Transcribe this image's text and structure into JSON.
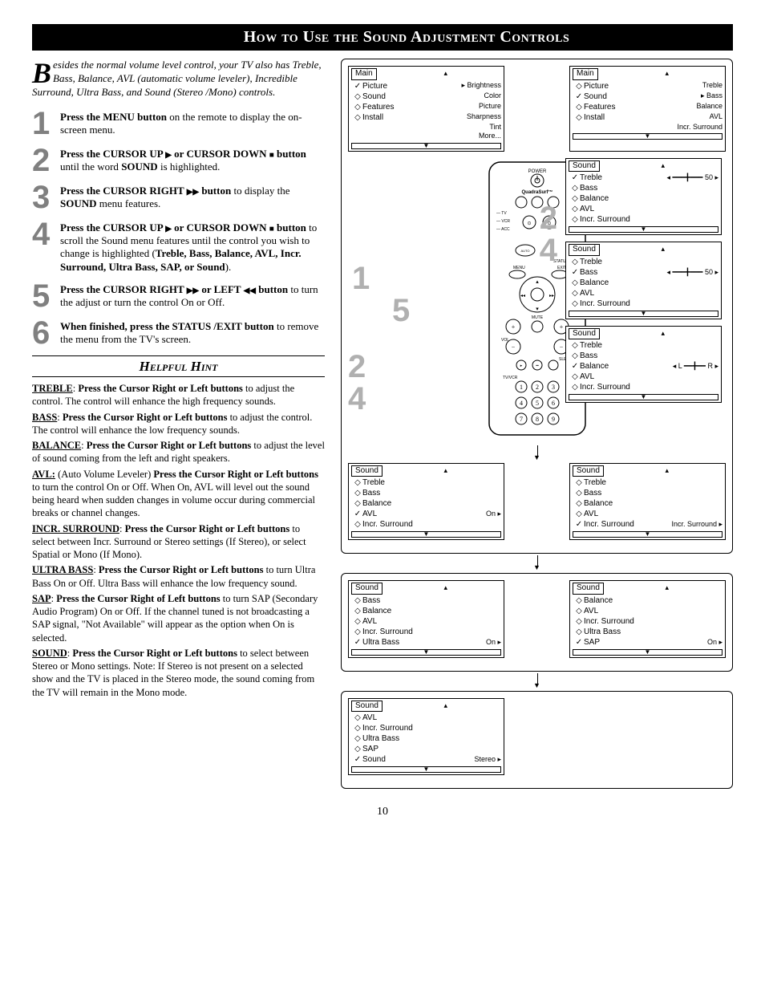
{
  "title": "How to Use the Sound Adjustment Controls",
  "intro_first_letter": "B",
  "intro": "esides the normal volume level control, your TV also has Treble, Bass, Balance, AVL (automatic volume leveler), Incredible Surround, Ultra Bass, and Sound (Stereo /Mono) controls.",
  "steps": {
    "s1": {
      "num": "1",
      "html": "<b>Press the MENU button</b> on the remote to display the on-screen menu."
    },
    "s2": {
      "num": "2",
      "html": "<b>Press the CURSOR UP <span class='tri'>▶</span> or CURSOR DOWN <span class='sq'>■</span> button</b> until the word <b>SOUND</b> is highlighted."
    },
    "s3": {
      "num": "3",
      "html": "<b>Press the CURSOR RIGHT <span class='tri'>▶▶</span> button</b> to display the <b>SOUND</b> menu features."
    },
    "s4": {
      "num": "4",
      "html": "<b>Press the CURSOR UP <span class='tri'>▶</span> or CURSOR DOWN <span class='sq'>■</span> button</b> to scroll the Sound menu features until the control you wish to change is highlighted (<b>Treble, Bass, Balance, AVL, Incr. Surround, Ultra Bass, SAP, or Sound</b>)."
    },
    "s5": {
      "num": "5",
      "html": "<b>Press the CURSOR RIGHT <span class='tri'>▶▶</span> or LEFT <span class='tri'>◀◀</span> button</b> to turn the adjust or turn the control On or Off."
    },
    "s6": {
      "num": "6",
      "html": "<b>When finished, press the STATUS /EXIT button</b> to remove the menu from the TV's screen."
    }
  },
  "hint_title": "Helpful Hint",
  "hints": {
    "treble": "<u>TREBLE</u>: <b>Press the Cursor Right or Left buttons</b> to adjust the control. The control will enhance the high frequency sounds.",
    "bass": "<u>BASS</u>: <b>Press the Cursor Right or Left buttons</b> to adjust the control. The control will enhance the low frequency sounds.",
    "balance": "<u>BALANCE</u>: <b>Press the Cursor Right or Left buttons</b> to adjust the level of sound coming from the left and right speakers.",
    "avl": "<u>AVL:</u> (Auto Volume Leveler) <b>Press the Cursor Right or Left buttons</b> to turn the control On or Off. When On, AVL will level out the sound being heard when sudden changes in volume occur during commercial breaks or channel changes.",
    "incr": "<u>INCR. SURROUND</u>: <b>Press the Cursor Right or Left buttons</b> to select between Incr. Surround or Stereo settings (If Stereo), or select Spatial or Mono (If Mono).",
    "ultra": "<u>ULTRA BASS</u>: <b>Press the Cursor Right or Left buttons</b> to turn Ultra Bass On or Off. Ultra Bass will enhance the low frequency sound.",
    "sap": "<u>SAP</u>: <b>Press the Cursor Right of Left buttons</b> to turn SAP (Secondary Audio Program) On or Off. If the channel tuned is not broadcasting a SAP signal, \"Not Available\" will appear as the option when On is selected.",
    "sound": "<u>SOUND</u>: <b>Press the Cursor Right or Left buttons</b> to select between Stereo or Mono settings. Note: If Stereo is not present on a selected show and the TV is placed in the Stereo mode, the sound coming from the TV will remain in the Mono mode."
  },
  "page_num": "10",
  "menus": {
    "main1": {
      "title": "Main",
      "items": [
        {
          "b": "✓",
          "l": "Picture",
          "v": "▸  Brightness"
        },
        {
          "b": "◇",
          "l": "Sound",
          "v": "Color"
        },
        {
          "b": "◇",
          "l": "Features",
          "v": "Picture"
        },
        {
          "b": "◇",
          "l": "Install",
          "v": "Sharpness"
        },
        {
          "b": "",
          "l": "",
          "v": "Tint"
        },
        {
          "b": "",
          "l": "",
          "v": "More..."
        }
      ]
    },
    "main2": {
      "title": "Main",
      "items": [
        {
          "b": "◇",
          "l": "Picture",
          "v": "Treble"
        },
        {
          "b": "✓",
          "l": "Sound",
          "v": "▸  Bass"
        },
        {
          "b": "◇",
          "l": "Features",
          "v": "Balance"
        },
        {
          "b": "◇",
          "l": "Install",
          "v": "AVL"
        },
        {
          "b": "",
          "l": "",
          "v": "Incr. Surround"
        }
      ]
    },
    "sound_treble": {
      "title": "Sound",
      "items": [
        {
          "b": "✓",
          "l": "Treble",
          "v": "◂ ━━━╋━━━ 50 ▸"
        },
        {
          "b": "◇",
          "l": "Bass",
          "v": ""
        },
        {
          "b": "◇",
          "l": "Balance",
          "v": ""
        },
        {
          "b": "◇",
          "l": "AVL",
          "v": ""
        },
        {
          "b": "◇",
          "l": "Incr. Surround",
          "v": ""
        }
      ]
    },
    "sound_bass": {
      "title": "Sound",
      "items": [
        {
          "b": "◇",
          "l": "Treble",
          "v": ""
        },
        {
          "b": "✓",
          "l": "Bass",
          "v": "◂ ━━━╋━━━ 50 ▸"
        },
        {
          "b": "◇",
          "l": "Balance",
          "v": ""
        },
        {
          "b": "◇",
          "l": "AVL",
          "v": ""
        },
        {
          "b": "◇",
          "l": "Incr. Surround",
          "v": ""
        }
      ]
    },
    "sound_balance": {
      "title": "Sound",
      "items": [
        {
          "b": "◇",
          "l": "Treble",
          "v": ""
        },
        {
          "b": "◇",
          "l": "Bass",
          "v": ""
        },
        {
          "b": "✓",
          "l": "Balance",
          "v": "◂ L ━━╋━━ R ▸"
        },
        {
          "b": "◇",
          "l": "AVL",
          "v": ""
        },
        {
          "b": "◇",
          "l": "Incr. Surround",
          "v": ""
        }
      ]
    },
    "sound_avl": {
      "title": "Sound",
      "items": [
        {
          "b": "◇",
          "l": "Treble",
          "v": ""
        },
        {
          "b": "◇",
          "l": "Bass",
          "v": ""
        },
        {
          "b": "◇",
          "l": "Balance",
          "v": ""
        },
        {
          "b": "✓",
          "l": "AVL",
          "v": "On ▸"
        },
        {
          "b": "◇",
          "l": "Incr. Surround",
          "v": ""
        }
      ]
    },
    "sound_incr": {
      "title": "Sound",
      "items": [
        {
          "b": "◇",
          "l": "Treble",
          "v": ""
        },
        {
          "b": "◇",
          "l": "Bass",
          "v": ""
        },
        {
          "b": "◇",
          "l": "Balance",
          "v": ""
        },
        {
          "b": "◇",
          "l": "AVL",
          "v": ""
        },
        {
          "b": "✓",
          "l": "Incr. Surround",
          "v": "Incr. Surround ▸"
        }
      ]
    },
    "sound_ultra": {
      "title": "Sound",
      "items": [
        {
          "b": "◇",
          "l": "Bass",
          "v": ""
        },
        {
          "b": "◇",
          "l": "Balance",
          "v": ""
        },
        {
          "b": "◇",
          "l": "AVL",
          "v": ""
        },
        {
          "b": "◇",
          "l": "Incr. Surround",
          "v": ""
        },
        {
          "b": "✓",
          "l": "Ultra Bass",
          "v": "On ▸"
        }
      ]
    },
    "sound_sap": {
      "title": "Sound",
      "items": [
        {
          "b": "◇",
          "l": "Balance",
          "v": ""
        },
        {
          "b": "◇",
          "l": "AVL",
          "v": ""
        },
        {
          "b": "◇",
          "l": "Incr. Surround",
          "v": ""
        },
        {
          "b": "◇",
          "l": "Ultra Bass",
          "v": ""
        },
        {
          "b": "✓",
          "l": "SAP",
          "v": "On ▸"
        }
      ]
    },
    "sound_sound": {
      "title": "Sound",
      "items": [
        {
          "b": "◇",
          "l": "AVL",
          "v": ""
        },
        {
          "b": "◇",
          "l": "Incr. Surround",
          "v": ""
        },
        {
          "b": "◇",
          "l": "Ultra Bass",
          "v": ""
        },
        {
          "b": "◇",
          "l": "SAP",
          "v": ""
        },
        {
          "b": "✓",
          "l": "Sound",
          "v": "Stereo ▸"
        }
      ]
    }
  },
  "remote": {
    "brand": "QuadraSurf™",
    "power": "POWER",
    "nums_left": [
      "1",
      "5",
      "2",
      "4"
    ],
    "nums_right": [
      "2",
      "4",
      "6",
      "3",
      "5"
    ],
    "labels": {
      "tv": "TV",
      "vcr": "VCR",
      "acc": "ACC",
      "menu": "MENU",
      "exit": "EXIT",
      "status": "STATUS",
      "mute": "MUTE",
      "ch": "CH",
      "vol": "VOL",
      "auto": "AUTO SOUND",
      "sleep": "SLEEP",
      "tvvcr": "TV/VCR"
    }
  },
  "colors": {
    "bg": "#ffffff",
    "fg": "#000000",
    "gray_num": "#808080",
    "lightgray_num": "#b0b0b0"
  }
}
